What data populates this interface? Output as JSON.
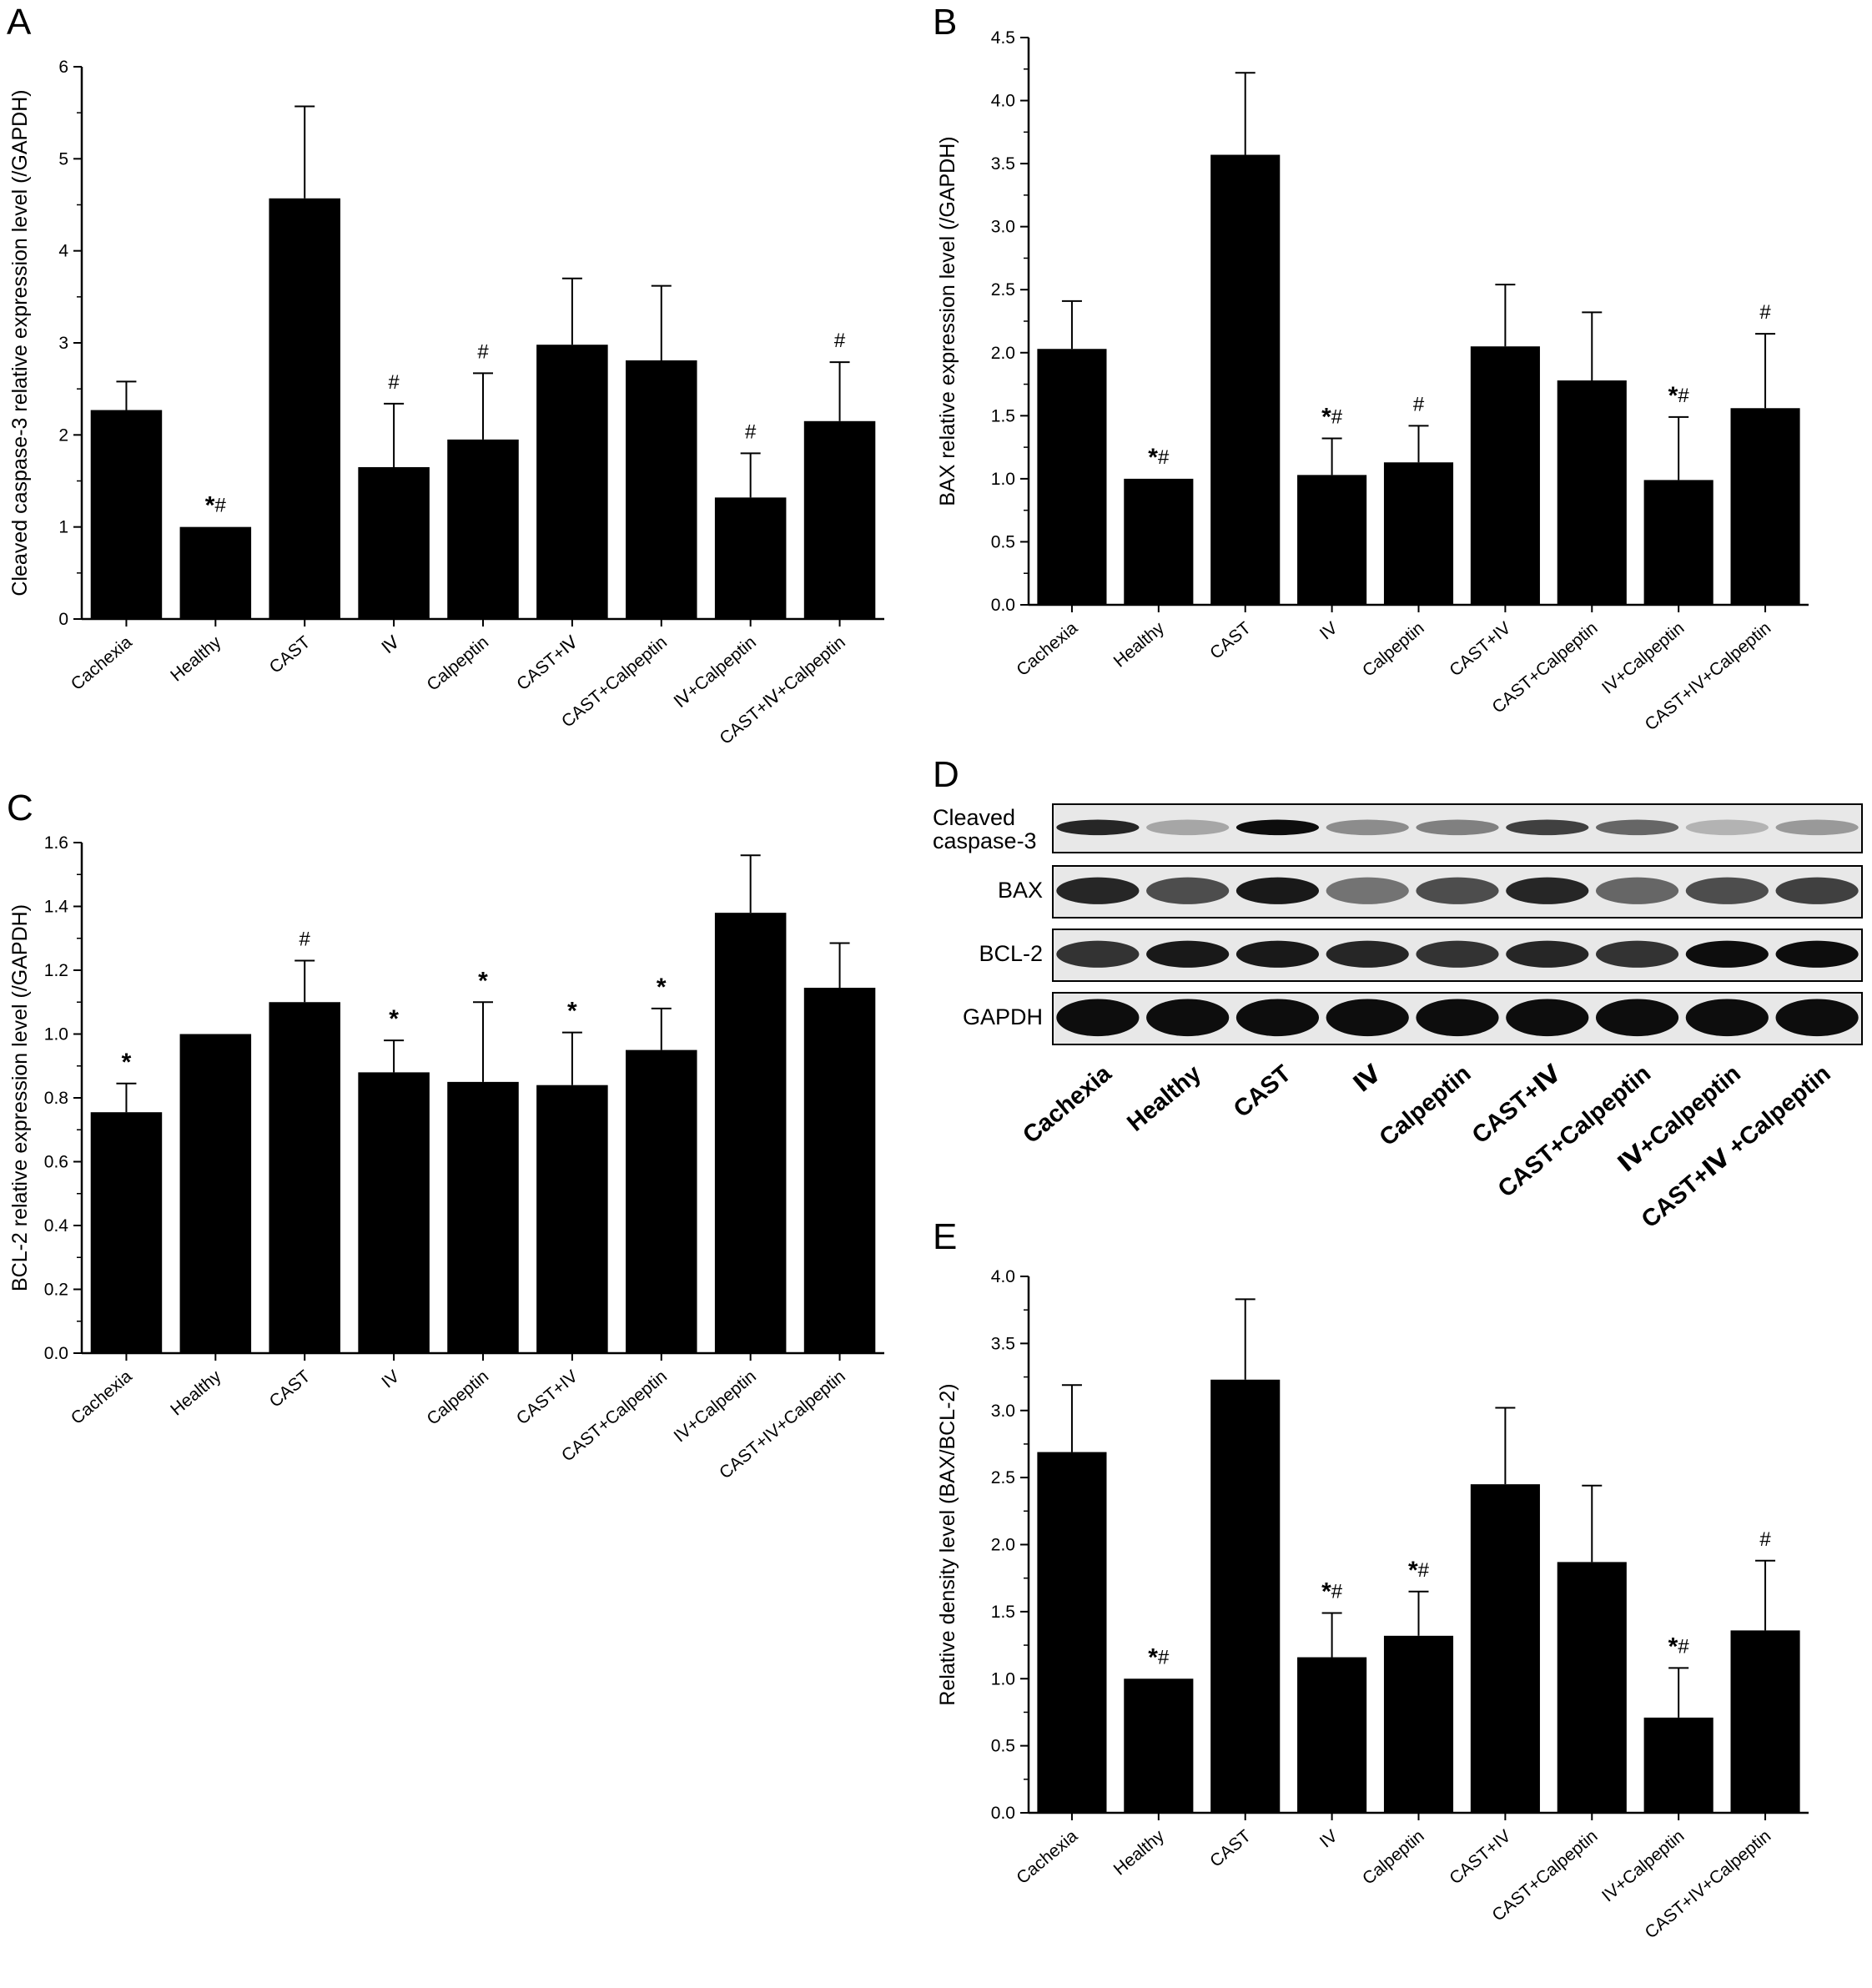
{
  "chart_data": [
    {
      "panel": "A",
      "type": "bar",
      "categories": [
        "Cachexia",
        "Healthy",
        "CAST",
        "Ⅳ",
        "Calpeptin",
        "CAST+Ⅳ",
        "CAST+Calpeptin",
        "Ⅳ+Calpeptin",
        "CAST+Ⅳ+Calpeptin"
      ],
      "values": [
        2.27,
        1.0,
        4.57,
        1.65,
        1.95,
        2.98,
        2.81,
        1.32,
        2.15
      ],
      "error": [
        0.31,
        0,
        1.0,
        0.69,
        0.72,
        0.72,
        0.81,
        0.48,
        0.64
      ],
      "marks": [
        "",
        "*#",
        "",
        "#",
        "#",
        "",
        "",
        "#",
        "#"
      ],
      "ylabel": "Cleaved caspase-3 relative expression level (/GAPDH)",
      "ylim": [
        0,
        6
      ],
      "yticks": [
        "0",
        "1",
        "2",
        "3",
        "4",
        "5",
        "6"
      ]
    },
    {
      "panel": "B",
      "type": "bar",
      "categories": [
        "Cachexia",
        "Healthy",
        "CAST",
        "IV",
        "Calpeptin",
        "CAST+IV",
        "CAST+Calpeptin",
        "IV+Calpeptin",
        "CAST+IV+Calpeptin"
      ],
      "values": [
        2.03,
        1.0,
        3.57,
        1.03,
        1.13,
        2.05,
        1.78,
        0.99,
        1.56
      ],
      "error": [
        0.38,
        0,
        0.65,
        0.29,
        0.29,
        0.49,
        0.54,
        0.5,
        0.59
      ],
      "marks": [
        "",
        "*#",
        "",
        "*#",
        "#",
        "",
        "",
        "*#",
        "#"
      ],
      "ylabel": "BAX relative expression level (/GAPDH)",
      "ylim": [
        0,
        4.5
      ],
      "yticks": [
        "0.0",
        "0.5",
        "1.0",
        "1.5",
        "2.0",
        "2.5",
        "3.0",
        "3.5",
        "4.0",
        "4.5"
      ]
    },
    {
      "panel": "C",
      "type": "bar",
      "categories": [
        "Cachexia",
        "Healthy",
        "CAST",
        "IV",
        "Calpeptin",
        "CAST+IV",
        "CAST+Calpeptin",
        "IV+Calpeptin",
        "CAST+IV+Calpeptin"
      ],
      "values": [
        0.755,
        1.0,
        1.1,
        0.88,
        0.85,
        0.84,
        0.95,
        1.38,
        1.145
      ],
      "error": [
        0.09,
        0,
        0.13,
        0.1,
        0.25,
        0.165,
        0.13,
        0.18,
        0.14
      ],
      "marks": [
        "*",
        "",
        "#",
        "*",
        "*",
        "*",
        "*",
        "",
        ""
      ],
      "ylabel": "BCL-2 relative expression level (/GAPDH)",
      "ylim": [
        0,
        1.6
      ],
      "yticks": [
        "0.0",
        "0.2",
        "0.4",
        "0.6",
        "0.8",
        "1.0",
        "1.2",
        "1.4",
        "1.6"
      ]
    },
    {
      "panel": "E",
      "type": "bar",
      "categories": [
        "Cachexia",
        "Healthy",
        "CAST",
        "IV",
        "Calpeptin",
        "CAST+IV",
        "CAST+Calpeptin",
        "IV+Calpeptin",
        "CAST+IV+Calpeptin"
      ],
      "values": [
        2.69,
        1.0,
        3.23,
        1.16,
        1.32,
        2.45,
        1.87,
        0.71,
        1.36
      ],
      "error": [
        0.5,
        0,
        0.6,
        0.33,
        0.33,
        0.57,
        0.57,
        0.37,
        0.52
      ],
      "marks": [
        "",
        "*#",
        "",
        "*#",
        "*#",
        "",
        "",
        "*#",
        "#"
      ],
      "ylabel": "Relative density level (BAX/BCL-2)",
      "ylim": [
        0,
        4.0
      ],
      "yticks": [
        "0.0",
        "0.5",
        "1.0",
        "1.5",
        "2.0",
        "2.5",
        "3.0",
        "3.5",
        "4.0"
      ]
    }
  ],
  "blot": {
    "panel": "D",
    "rows": [
      "Cleaved caspase-3",
      "BAX",
      "BCL-2",
      "GAPDH"
    ],
    "categories": [
      "Cachexia",
      "Healthy",
      "CAST",
      "Ⅳ",
      "Calpeptin",
      "CAST+Ⅳ",
      "CAST+Calpeptin",
      "Ⅳ+Calpeptin",
      "CAST+Ⅳ +Calpeptin"
    ],
    "intensity": [
      [
        0.85,
        0.35,
        0.95,
        0.45,
        0.5,
        0.75,
        0.6,
        0.3,
        0.4
      ],
      [
        0.85,
        0.7,
        0.9,
        0.55,
        0.7,
        0.85,
        0.6,
        0.7,
        0.75
      ],
      [
        0.8,
        0.9,
        0.9,
        0.85,
        0.8,
        0.85,
        0.8,
        0.95,
        0.95
      ],
      [
        0.95,
        0.95,
        0.95,
        0.95,
        0.95,
        0.95,
        0.95,
        0.95,
        0.95
      ]
    ]
  }
}
